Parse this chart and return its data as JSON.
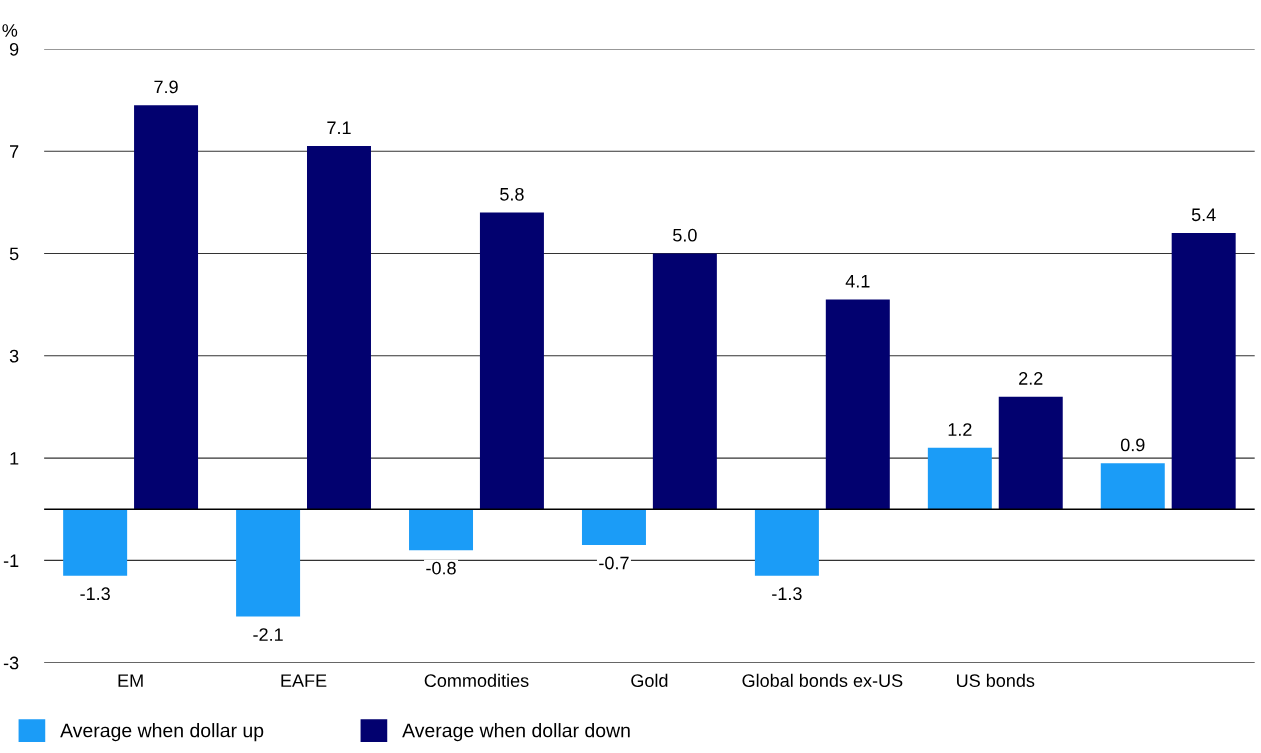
{
  "chart_data": {
    "type": "bar",
    "ylabel": "%",
    "categories": [
      "EM",
      "EAFE",
      "Commodities",
      "Gold",
      "Global bonds ex-US",
      "US bonds",
      null
    ],
    "series": [
      {
        "name": "Average when dollar up",
        "color": "#1b9cf7",
        "values": [
          -1.3,
          -2.1,
          -0.8,
          -0.7,
          -1.3,
          1.2,
          0.9
        ],
        "value_labels": [
          "-1.3",
          "-2.1",
          "-0.8",
          "-0.7",
          "-1.3",
          "1.2",
          "0.9"
        ]
      },
      {
        "name": "Average when dollar down",
        "color": "#02016f",
        "values": [
          7.9,
          7.1,
          5.8,
          5.0,
          4.1,
          2.2,
          5.4
        ],
        "value_labels": [
          "7.9",
          "7.1",
          "5.8",
          "5.0",
          "4.1",
          "2.2",
          "5.4"
        ]
      }
    ],
    "ylim": [
      -3,
      9
    ],
    "yticks": [
      -3,
      -1,
      1,
      3,
      5,
      7,
      9
    ],
    "grid": "y",
    "legend": "bottom left",
    "ref_lines": [
      {
        "axis": "y",
        "value": 0,
        "color": "#000000"
      }
    ]
  }
}
